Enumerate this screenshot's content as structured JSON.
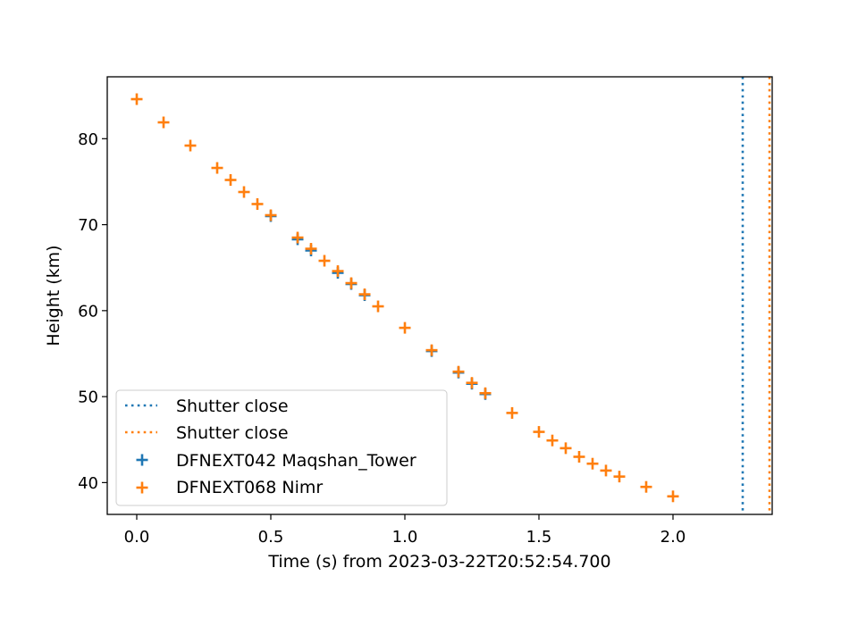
{
  "chart_data": {
    "type": "scatter",
    "title": "",
    "xlabel": "Time (s) from 2023-03-22T20:52:54.700",
    "ylabel": "Height (km)",
    "xlim": [
      -0.11,
      2.37
    ],
    "ylim": [
      36.3,
      87.2
    ],
    "xticks": [
      0.0,
      0.5,
      1.0,
      1.5,
      2.0
    ],
    "xtick_labels": [
      "0.0",
      "0.5",
      "1.0",
      "1.5",
      "2.0"
    ],
    "yticks": [
      40,
      50,
      60,
      70,
      80
    ],
    "ytick_labels": [
      "40",
      "50",
      "60",
      "70",
      "80"
    ],
    "grid": false,
    "legend_location": "lower left",
    "vlines": [
      {
        "name": "Shutter close",
        "x": 2.26,
        "color": "#1f77b4",
        "style": "dotted"
      },
      {
        "name": "Shutter close",
        "x": 2.36,
        "color": "#ff7f0e",
        "style": "dotted"
      }
    ],
    "series": [
      {
        "name": "DFNEXT042 Maqshan_Tower",
        "marker": "plus",
        "color": "#1f77b4",
        "points": [
          [
            0.5,
            71.0
          ],
          [
            0.6,
            68.3
          ],
          [
            0.65,
            67.0
          ],
          [
            0.75,
            64.4
          ],
          [
            0.8,
            63.1
          ],
          [
            0.85,
            61.8
          ],
          [
            1.1,
            55.3
          ],
          [
            1.2,
            52.8
          ],
          [
            1.25,
            51.5
          ],
          [
            1.3,
            50.3
          ]
        ]
      },
      {
        "name": "DFNEXT068 Nimr",
        "marker": "plus",
        "color": "#ff7f0e",
        "points": [
          [
            0.0,
            84.6
          ],
          [
            0.1,
            81.9
          ],
          [
            0.2,
            79.2
          ],
          [
            0.3,
            76.6
          ],
          [
            0.35,
            75.2
          ],
          [
            0.4,
            73.8
          ],
          [
            0.45,
            72.4
          ],
          [
            0.5,
            71.1
          ],
          [
            0.6,
            68.5
          ],
          [
            0.65,
            67.2
          ],
          [
            0.7,
            65.8
          ],
          [
            0.75,
            64.6
          ],
          [
            0.8,
            63.2
          ],
          [
            0.85,
            61.9
          ],
          [
            0.9,
            60.5
          ],
          [
            1.0,
            58.0
          ],
          [
            1.1,
            55.4
          ],
          [
            1.2,
            52.9
          ],
          [
            1.25,
            51.6
          ],
          [
            1.3,
            50.4
          ],
          [
            1.4,
            48.1
          ],
          [
            1.5,
            45.9
          ],
          [
            1.55,
            44.9
          ],
          [
            1.6,
            44.0
          ],
          [
            1.65,
            43.0
          ],
          [
            1.7,
            42.2
          ],
          [
            1.75,
            41.4
          ],
          [
            1.8,
            40.7
          ],
          [
            1.9,
            39.5
          ],
          [
            2.0,
            38.4
          ]
        ]
      }
    ]
  }
}
